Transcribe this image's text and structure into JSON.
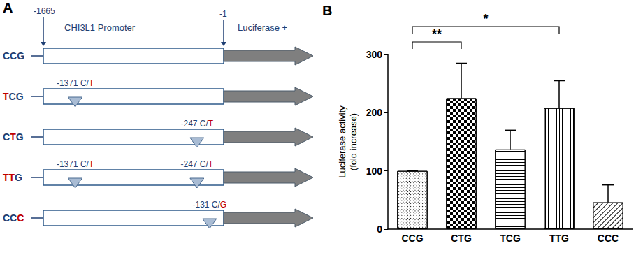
{
  "panel_a": {
    "label": "A",
    "start": -1665,
    "end": -1,
    "promoter": "CHI3L1 Promoter",
    "reporter": "Luciferase +",
    "constructs": [
      {
        "name": [
          {
            "text": "CCG",
            "mutant": false
          }
        ],
        "mutations": []
      },
      {
        "name": [
          {
            "text": "T",
            "mutant": true
          },
          {
            "text": "CG",
            "mutant": false
          }
        ],
        "mutations": [
          {
            "position": -1371,
            "label": "-1371 C/",
            "alt": "T"
          }
        ]
      },
      {
        "name": [
          {
            "text": "C",
            "mutant": false
          },
          {
            "text": "T",
            "mutant": true
          },
          {
            "text": "G",
            "mutant": false
          }
        ],
        "mutations": [
          {
            "position": -247,
            "label": "-247 C/",
            "alt": "T"
          }
        ]
      },
      {
        "name": [
          {
            "text": "TT",
            "mutant": true
          },
          {
            "text": "G",
            "mutant": false
          }
        ],
        "mutations": [
          {
            "position": -1371,
            "label": "-1371 C/",
            "alt": "T"
          },
          {
            "position": -247,
            "label": "-247 C/",
            "alt": "T"
          }
        ]
      },
      {
        "name": [
          {
            "text": "CC",
            "mutant": false
          },
          {
            "text": "C",
            "mutant": true
          }
        ],
        "mutations": [
          {
            "position": -131,
            "label": "-131 C/",
            "alt": "G"
          }
        ]
      }
    ]
  },
  "chart_data": {
    "type": "bar",
    "title": "B",
    "ylabel": "Luciferase activity\n(fold increase)",
    "categories": [
      "CCG",
      "CTG",
      "TCG",
      "TTG",
      "CCC"
    ],
    "values": [
      100,
      225,
      137,
      208,
      46
    ],
    "errors": [
      0,
      60,
      33,
      47,
      30
    ],
    "color": "#000000",
    "ylim": [
      0,
      300
    ],
    "yticks": [
      0,
      100,
      200,
      300
    ],
    "grid": false,
    "annotations": [
      {
        "from": "CCG",
        "to": "CTG",
        "text": "**"
      },
      {
        "from": "CCG",
        "to": "TTG",
        "text": "*"
      }
    ]
  }
}
